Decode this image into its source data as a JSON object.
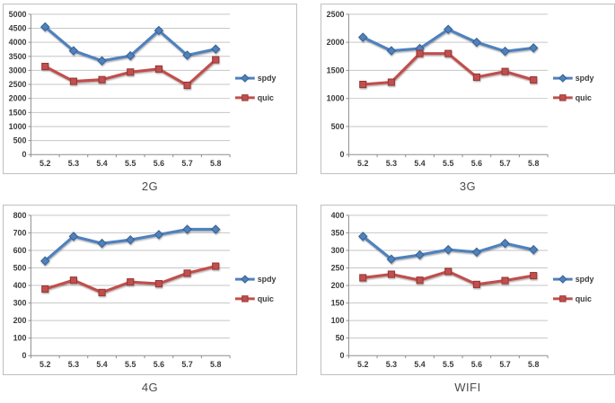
{
  "page": {
    "background": "#FFFFFF",
    "frame_border_color": "#BFBFBF",
    "gridline_color": "#C6C6C6",
    "axis_color": "#8E8E8E",
    "tick_label_color": "#3B3B3B",
    "title_color": "#4A4A4A"
  },
  "chart_data": [
    {
      "type": "line",
      "title": "2G",
      "x_categories": [
        "5.2",
        "5.3",
        "5.4",
        "5.5",
        "5.6",
        "5.7",
        "5.8"
      ],
      "ylim": [
        0,
        5000
      ],
      "ytick_step": 500,
      "grid": true,
      "legend_position": "right",
      "series": [
        {
          "name": "spdy",
          "color": "#4F81BD",
          "marker_stroke": "#38618F",
          "marker": "diamond",
          "values": [
            4550,
            3700,
            3340,
            3520,
            4420,
            3540,
            3760
          ]
        },
        {
          "name": "quic",
          "color": "#C0504D",
          "marker_stroke": "#943634",
          "marker": "square",
          "values": [
            3140,
            2610,
            2670,
            2940,
            3050,
            2470,
            3380
          ]
        }
      ]
    },
    {
      "type": "line",
      "title": "3G",
      "x_categories": [
        "5.2",
        "5.3",
        "5.4",
        "5.5",
        "5.6",
        "5.7",
        "5.8"
      ],
      "ylim": [
        0,
        2500
      ],
      "ytick_step": 500,
      "grid": true,
      "legend_position": "right",
      "series": [
        {
          "name": "spdy",
          "color": "#4F81BD",
          "marker_stroke": "#38618F",
          "marker": "diamond",
          "values": [
            2090,
            1850,
            1890,
            2230,
            2000,
            1840,
            1900
          ]
        },
        {
          "name": "quic",
          "color": "#C0504D",
          "marker_stroke": "#943634",
          "marker": "square",
          "values": [
            1250,
            1290,
            1800,
            1800,
            1380,
            1480,
            1330
          ]
        }
      ]
    },
    {
      "type": "line",
      "title": "4G",
      "x_categories": [
        "5.2",
        "5.3",
        "5.4",
        "5.5",
        "5.6",
        "5.7",
        "5.8"
      ],
      "ylim": [
        0,
        800
      ],
      "ytick_step": 100,
      "grid": true,
      "legend_position": "right",
      "series": [
        {
          "name": "spdy",
          "color": "#4F81BD",
          "marker_stroke": "#38618F",
          "marker": "diamond",
          "values": [
            540,
            680,
            640,
            660,
            690,
            720,
            720
          ]
        },
        {
          "name": "quic",
          "color": "#C0504D",
          "marker_stroke": "#943634",
          "marker": "square",
          "values": [
            380,
            430,
            360,
            420,
            410,
            470,
            510
          ]
        }
      ]
    },
    {
      "type": "line",
      "title": "WIFI",
      "x_categories": [
        "5.2",
        "5.3",
        "5.4",
        "5.5",
        "5.6",
        "5.7",
        "5.8"
      ],
      "ylim": [
        0,
        400
      ],
      "ytick_step": 50,
      "grid": true,
      "legend_position": "right",
      "series": [
        {
          "name": "spdy",
          "color": "#4F81BD",
          "marker_stroke": "#38618F",
          "marker": "diamond",
          "values": [
            340,
            275,
            287,
            302,
            295,
            320,
            302
          ]
        },
        {
          "name": "quic",
          "color": "#C0504D",
          "marker_stroke": "#943634",
          "marker": "square",
          "values": [
            222,
            232,
            215,
            240,
            203,
            214,
            228
          ]
        }
      ]
    }
  ]
}
